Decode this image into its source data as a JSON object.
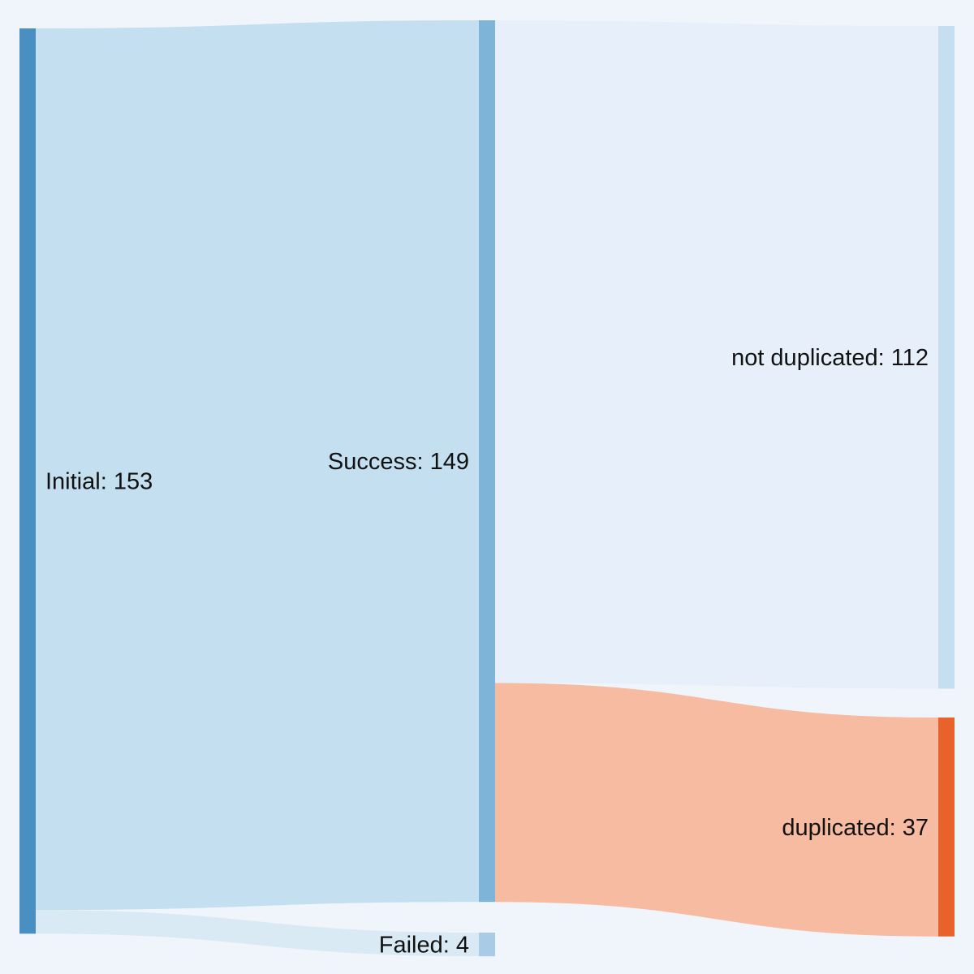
{
  "chart_data": {
    "type": "sankey",
    "nodes": [
      {
        "id": "initial",
        "name": "Initial",
        "value": 153,
        "label": "Initial: 153",
        "color": "#4a8fc2",
        "column": 0
      },
      {
        "id": "success",
        "name": "Success",
        "value": 149,
        "label": "Success: 149",
        "color": "#7eb4d8",
        "column": 1
      },
      {
        "id": "failed",
        "name": "Failed",
        "value": 4,
        "label": "Failed: 4",
        "color": "#a9cbe6",
        "column": 1
      },
      {
        "id": "not_duplicated",
        "name": "not duplicated",
        "value": 112,
        "label": "not duplicated: 112",
        "color": "#c6dff0",
        "column": 2
      },
      {
        "id": "duplicated",
        "name": "duplicated",
        "value": 37,
        "label": "duplicated: 37",
        "color": "#e8622c",
        "column": 2
      }
    ],
    "links": [
      {
        "source": "initial",
        "target": "success",
        "value": 149,
        "color": "#c4dff0"
      },
      {
        "source": "initial",
        "target": "failed",
        "value": 4,
        "color": "#d9eaf4"
      },
      {
        "source": "success",
        "target": "not_duplicated",
        "value": 112,
        "color": "#e7f0fa"
      },
      {
        "source": "success",
        "target": "duplicated",
        "value": 37,
        "color": "#f6bba0"
      }
    ]
  }
}
